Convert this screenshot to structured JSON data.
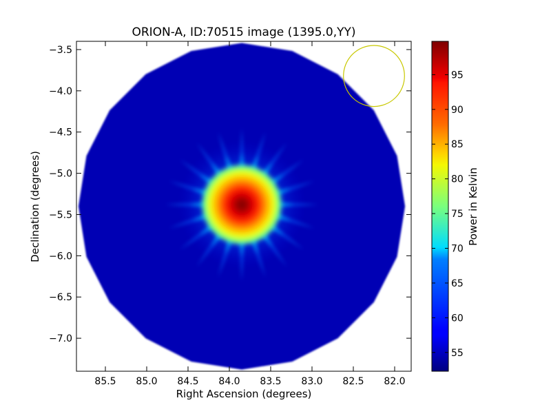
{
  "chart_data": {
    "type": "heatmap",
    "title": "ORION-A, ID:70515 image (1395.0,YY)",
    "xlabel": "Right Ascension (degrees)",
    "ylabel": "Declination (degrees)",
    "xlim": [
      85.85,
      81.8
    ],
    "ylim": [
      -7.4,
      -3.4
    ],
    "x_ticks": [
      "85.5",
      "85.0",
      "84.5",
      "84.0",
      "83.5",
      "83.0",
      "82.5",
      "82.0"
    ],
    "x_tick_values": [
      85.5,
      85.0,
      84.5,
      84.0,
      83.5,
      83.0,
      82.5,
      82.0
    ],
    "y_ticks": [
      "−3.5",
      "−4.0",
      "−4.5",
      "−5.0",
      "−5.5",
      "−6.0",
      "−6.5",
      "−7.0"
    ],
    "y_tick_values": [
      -3.5,
      -4.0,
      -4.5,
      -5.0,
      -5.5,
      -6.0,
      -6.5,
      -7.0
    ],
    "colorbar": {
      "label": "Power in Kelvin",
      "colormap": "jet",
      "range": [
        52.3,
        99.8
      ],
      "ticks": [
        "55",
        "60",
        "65",
        "70",
        "75",
        "80",
        "85",
        "90",
        "95"
      ],
      "tick_values": [
        55,
        60,
        65,
        70,
        75,
        80,
        85,
        90,
        95
      ]
    },
    "image": {
      "footprint_center": [
        83.85,
        -5.4
      ],
      "footprint_radius_dec_deg": 1.98,
      "footprint_sides": 20,
      "background_value": 53.5,
      "peak_center": [
        83.85,
        -5.38
      ],
      "peak_value": 99.5,
      "core_radius_dec_deg": 0.3,
      "spoke_count": 20
    },
    "beam_circle": {
      "center": [
        82.25,
        -3.82
      ],
      "radius_dec_deg": 0.37,
      "color": "#c8c800"
    }
  }
}
